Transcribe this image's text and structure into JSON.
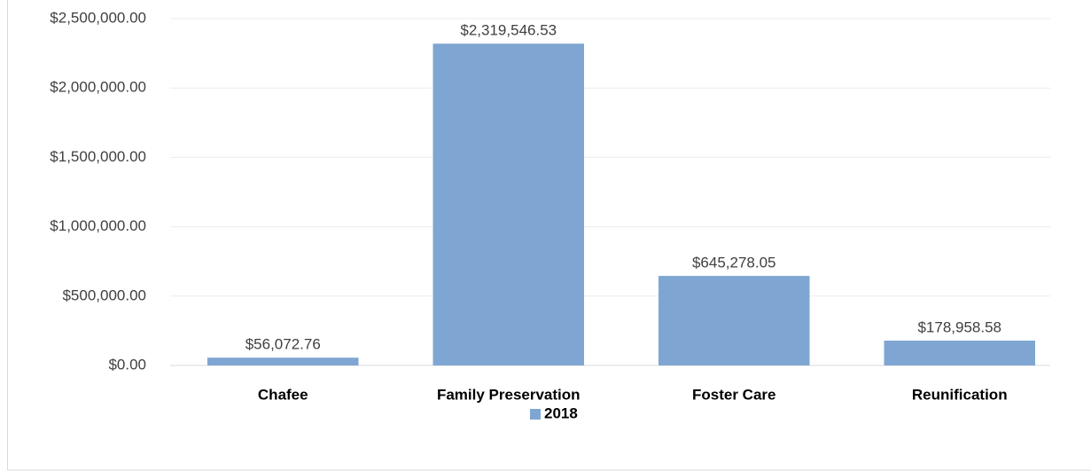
{
  "chart_data": {
    "type": "bar",
    "categories": [
      "Chafee",
      "Family Preservation",
      "Foster Care",
      "Reunification"
    ],
    "series": [
      {
        "name": "2018",
        "color": "#7fa6d2",
        "values": [
          56072.76,
          2319546.53,
          645278.05,
          178958.58
        ],
        "value_labels": [
          "$56,072.76",
          "$2,319,546.53",
          "$645,278.05",
          "$178,958.58"
        ]
      }
    ],
    "ylim": [
      0,
      2500000
    ],
    "yticks": [
      {
        "value": 0,
        "label": "$0.00"
      },
      {
        "value": 500000,
        "label": "$500,000.00"
      },
      {
        "value": 1000000,
        "label": "$1,000,000.00"
      },
      {
        "value": 1500000,
        "label": "$1,500,000.00"
      },
      {
        "value": 2000000,
        "label": "$2,000,000.00"
      },
      {
        "value": 2500000,
        "label": "$2,500,000.00"
      }
    ],
    "grid": true,
    "legend": "bottom"
  }
}
